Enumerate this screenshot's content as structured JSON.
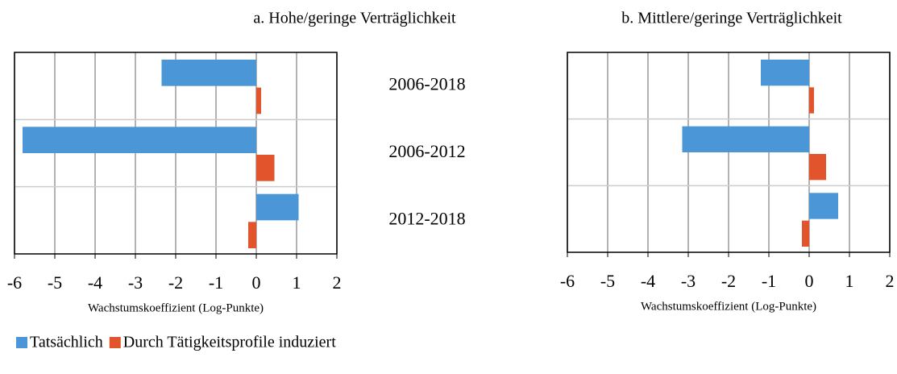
{
  "chart_data": [
    {
      "type": "barh",
      "title": "a. Hohe/geringe Verträglichkeit",
      "categories": [
        "2006-2018",
        "2006-2012",
        "2012-2018"
      ],
      "series": [
        {
          "name": "Tatsächlich",
          "color": "#4a96d6",
          "values": [
            -2.35,
            -5.8,
            1.05
          ]
        },
        {
          "name": "Durch Tätigkeitsprofile induziert",
          "color": "#e2552c",
          "values": [
            0.12,
            0.45,
            -0.2
          ]
        }
      ],
      "xlabel": "Wachstumskoeffizient (Log-Punkte)",
      "xlim": [
        -6,
        2
      ],
      "xticks": [
        -6,
        -5,
        -4,
        -3,
        -2,
        -1,
        0,
        1,
        2
      ],
      "grid": true
    },
    {
      "type": "barh",
      "title": "b. Mittlere/geringe Verträglichkeit",
      "categories": [
        null,
        null,
        null
      ],
      "series": [
        {
          "color": "#4a96d6",
          "values": [
            -1.2,
            -3.15,
            0.72
          ]
        },
        {
          "color": "#e2552c",
          "values": [
            0.12,
            0.42,
            -0.18
          ]
        }
      ],
      "xlabel": "Wachstumskoeffizient (Log-Punkte)",
      "xlim": [
        -6,
        2
      ],
      "xticks": [
        -6,
        -5,
        -4,
        -3,
        -2,
        -1,
        0,
        1,
        2
      ],
      "grid": true
    }
  ]
}
